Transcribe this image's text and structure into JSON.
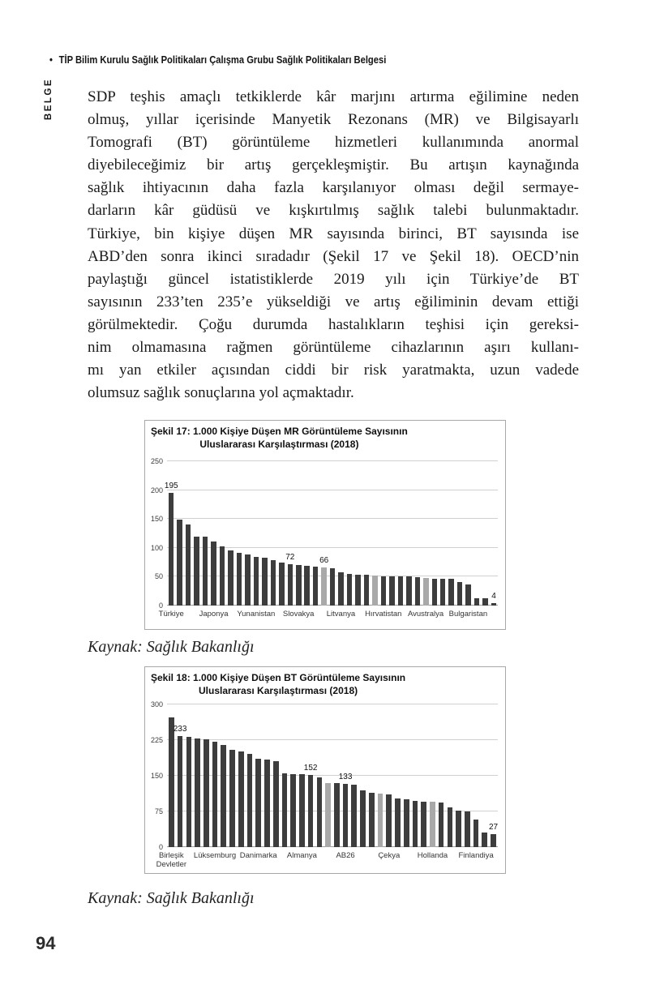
{
  "header": {
    "bullet": "•",
    "title": "TİP Bilim Kurulu Sağlık Politikaları Çalışma Grubu Sağlık Politikaları Belgesi",
    "side_label": "BELGE"
  },
  "body": {
    "lines": [
      "SDP teşhis amaçlı tetkiklerde kâr marjını artırma eğilimine neden",
      "olmuş, yıllar içerisinde Manyetik Rezonans (MR) ve Bilgisayarlı",
      "Tomografi (BT) görüntüleme hizmetleri kullanımında anormal",
      "diyebileceğimiz bir artış gerçekleşmiştir. Bu artışın kaynağında",
      "sağlık ihtiyacının daha fazla karşılanıyor olması değil sermaye-",
      "darların kâr güdüsü ve kışkırtılmış sağlık talebi bulunmaktadır.",
      "Türkiye, bin kişiye düşen MR sayısında birinci, BT sayısında ise",
      "ABD’den sonra ikinci sıradadır (Şekil 17 ve Şekil 18). OECD’nin",
      "paylaştığı güncel istatistiklerde 2019 yılı için Türkiye’de BT",
      "sayısının 233’ten 235’e yükseldiği ve artış eğiliminin devam ettiği",
      "görülmektedir. Çoğu durumda hastalıkların teşhisi için gereksi-",
      "nim olmamasına rağmen görüntüleme cihazlarının aşırı kullanı-",
      "mı yan etkiler açısından ciddi bir risk yaratmakta, uzun vadede",
      "olumsuz sağlık sonuçlarına yol açmaktadır."
    ]
  },
  "figures": [
    {
      "caption": "Kaynak: Sağlık Bakanlığı"
    },
    {
      "caption": "Kaynak: Sağlık Bakanlığı"
    }
  ],
  "page_number": "94",
  "chart_data": [
    {
      "type": "bar",
      "title": "Şekil 17: 1.000 Kişiye Düşen MR Görüntüleme Sayısının Uluslararası Karşılaştırması (2018)",
      "title_lines": [
        "Şekil 17: 1.000 Kişiye Düşen MR Görüntüleme Sayısının",
        "Uluslararası Karşılaştırması (2018)"
      ],
      "xlabel": "",
      "ylabel": "",
      "ylim": [
        0,
        250
      ],
      "yticks": [
        250,
        200,
        150,
        100,
        50,
        0
      ],
      "grid": "horizontal",
      "legend": "none",
      "values": [
        195,
        149,
        141,
        120,
        119,
        111,
        102,
        95,
        91,
        88,
        84,
        83,
        78,
        74,
        72,
        70,
        69,
        67,
        66,
        64,
        58,
        55,
        54,
        53,
        52,
        51,
        51,
        50,
        50,
        49,
        48,
        47,
        47,
        46,
        41,
        37,
        13,
        12,
        4
      ],
      "bar_labels": {
        "0": "195",
        "14": "72",
        "18": "66",
        "38": "4"
      },
      "gray_bar_indices": [
        18,
        24,
        30
      ],
      "x_tick_labels": [
        {
          "text": "Türkiye",
          "bar_index": 0
        },
        {
          "text": "Japonya",
          "bar_index": 5
        },
        {
          "text": "Yunanistan",
          "bar_index": 10
        },
        {
          "text": "Slovakya",
          "bar_index": 15
        },
        {
          "text": "Litvanya",
          "bar_index": 20
        },
        {
          "text": "Hırvatistan",
          "bar_index": 25
        },
        {
          "text": "Avustralya",
          "bar_index": 30
        },
        {
          "text": "Bulgaristan",
          "bar_index": 35
        }
      ],
      "bar_color": "#3d3d3d",
      "gray_color": "#a9a9a9"
    },
    {
      "type": "bar",
      "title": "Şekil 18: 1.000 Kişiye Düşen BT Görüntüleme Sayısının Uluslararası Karşılaştırması (2018)",
      "title_lines": [
        "Şekil 18: 1.000 Kişiye Düşen BT Görüntüleme Sayısının",
        "Uluslararası Karşılaştırması (2018)"
      ],
      "xlabel": "",
      "ylabel": "",
      "ylim": [
        0,
        300
      ],
      "yticks": [
        300,
        225,
        150,
        75,
        0
      ],
      "grid": "horizontal",
      "legend": "none",
      "values": [
        272,
        233,
        231,
        229,
        227,
        221,
        215,
        204,
        201,
        196,
        186,
        184,
        181,
        155,
        154,
        153,
        152,
        147,
        135,
        135,
        133,
        132,
        120,
        114,
        113,
        111,
        102,
        101,
        97,
        96,
        95,
        94,
        84,
        76,
        75,
        58,
        30,
        27
      ],
      "bar_labels": {
        "1": "233",
        "16": "152",
        "20": "133",
        "37": "27"
      },
      "gray_bar_indices": [
        18,
        24,
        30
      ],
      "x_tick_labels": [
        {
          "text": "Birleşik Devletler",
          "bar_index": 0
        },
        {
          "text": "Lüksemburg",
          "bar_index": 5
        },
        {
          "text": "Danimarka",
          "bar_index": 10
        },
        {
          "text": "Almanya",
          "bar_index": 15
        },
        {
          "text": "AB26",
          "bar_index": 20
        },
        {
          "text": "Çekya",
          "bar_index": 25
        },
        {
          "text": "Hollanda",
          "bar_index": 30
        },
        {
          "text": "Finlandiya",
          "bar_index": 35
        }
      ],
      "bar_color": "#3d3d3d",
      "gray_color": "#a9a9a9"
    }
  ]
}
